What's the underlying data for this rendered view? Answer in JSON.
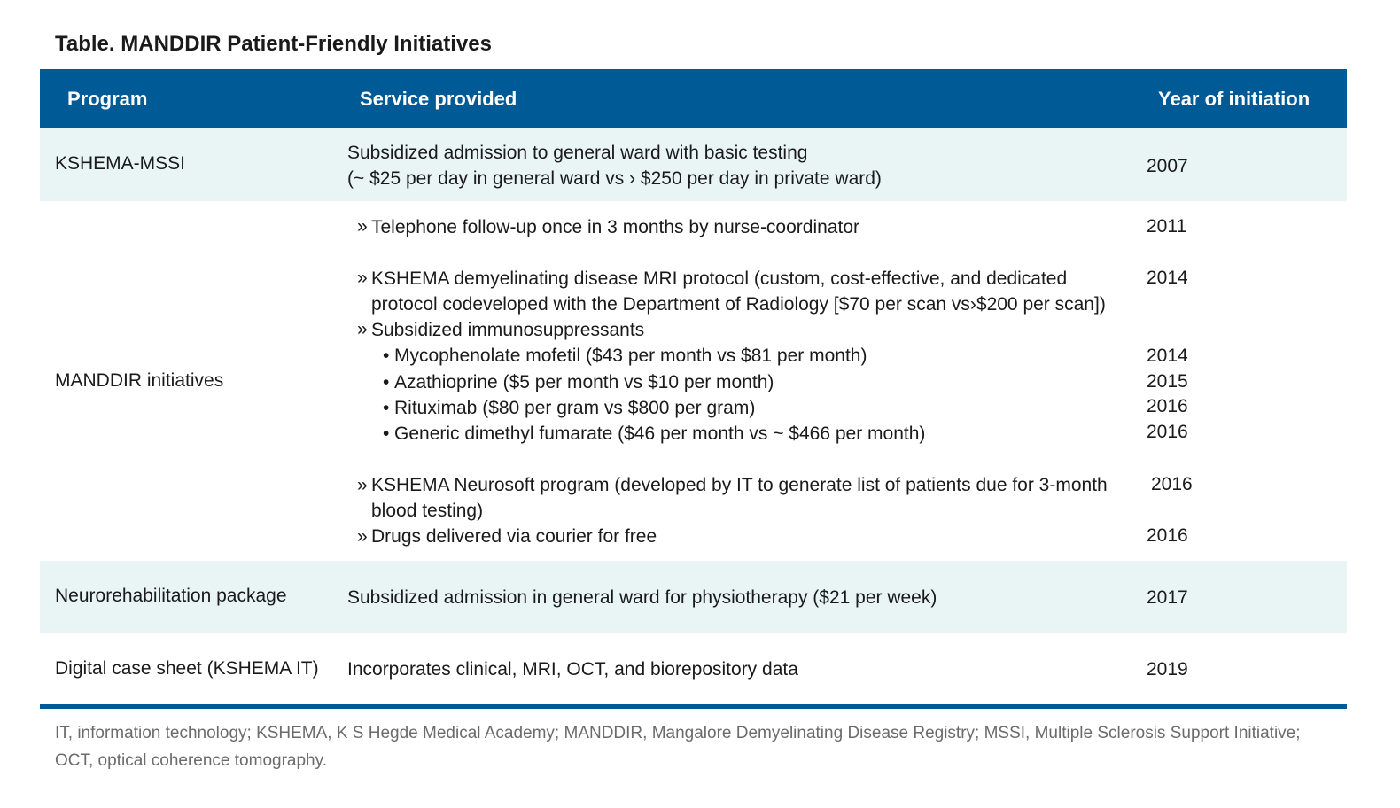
{
  "title": {
    "label": "Table.",
    "text": "MANDDIR Patient-Friendly Initiatives"
  },
  "columns": {
    "program": "Program",
    "service": "Service provided",
    "year": "Year of initiation"
  },
  "rows": {
    "mssi": {
      "program": "KSHEMA-MSSI",
      "service_line1": "Subsidized admission to general ward with basic testing",
      "service_line2": "(~ $25 per day in general ward vs › $250 per day in private ward)",
      "year": "2007"
    },
    "manddir": {
      "program": "MANDDIR initiatives",
      "marker": "»",
      "dot": "•",
      "items": {
        "telephone": {
          "text": "Telephone follow-up once in 3 months by nurse-coordinator",
          "year": "2011"
        },
        "mri": {
          "line1": "KSHEMA demyelinating disease MRI protocol (custom, cost-effective, and dedicated",
          "line2": "protocol codeveloped with the Department of Radiology [$70 per scan vs›$200 per scan])",
          "year": "2014"
        },
        "immuno": {
          "text": "Subsidized immunosuppressants"
        },
        "mycophenolate": {
          "text": "Mycophenolate mofetil ($43 per month vs $81 per month)",
          "year": "2014"
        },
        "azathioprine": {
          "text": "Azathioprine ($5 per month vs $10 per month)",
          "year": "2015"
        },
        "rituximab": {
          "text": "Rituximab ($80 per gram vs $800 per gram)",
          "year": "2016"
        },
        "dmf": {
          "text": "Generic dimethyl fumarate ($46 per month vs ~ $466 per month)",
          "year": "2016"
        },
        "neurosoft": {
          "line1": "KSHEMA Neurosoft program (developed by IT to generate list of patients due for 3-month",
          "line2": "blood testing)",
          "year": "2016"
        },
        "courier": {
          "text": "Drugs delivered via courier for free",
          "year": "2016"
        }
      }
    },
    "neurorehab": {
      "program": "Neurorehabilitation package",
      "service": "Subsidized admission in general ward for physiotherapy ($21 per week)",
      "year": "2017"
    },
    "digital": {
      "program": "Digital case sheet (KSHEMA IT)",
      "service": "Incorporates clinical, MRI, OCT, and biorepository data",
      "year": "2019"
    }
  },
  "footnote": "IT, information technology; KSHEMA, K S Hegde Medical Academy; MANDDIR, Mangalore Demyelinating Disease Registry; MSSI, Multiple Sclerosis Support Initiative; OCT, optical coherence tomography.",
  "colors": {
    "header_bg": "#005a96",
    "shaded_row": "#e9f5f5",
    "footnote_text": "#6b6b6b"
  }
}
